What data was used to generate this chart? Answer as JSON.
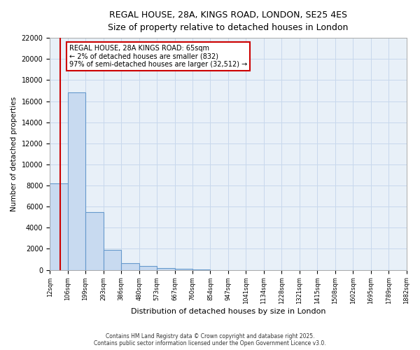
{
  "title_line1": "REGAL HOUSE, 28A, KINGS ROAD, LONDON, SE25 4ES",
  "title_line2": "Size of property relative to detached houses in London",
  "xlabel": "Distribution of detached houses by size in London",
  "ylabel": "Number of detached properties",
  "bin_edges": [
    12,
    106,
    199,
    293,
    386,
    480,
    573,
    667,
    760,
    854,
    947,
    1041,
    1134,
    1228,
    1321,
    1415,
    1508,
    1602,
    1695,
    1789,
    1882
  ],
  "bin_labels": [
    "12sqm",
    "106sqm",
    "199sqm",
    "293sqm",
    "386sqm",
    "480sqm",
    "573sqm",
    "667sqm",
    "760sqm",
    "854sqm",
    "947sqm",
    "1041sqm",
    "1134sqm",
    "1228sqm",
    "1321sqm",
    "1415sqm",
    "1508sqm",
    "1602sqm",
    "1695sqm",
    "1789sqm",
    "1882sqm"
  ],
  "bar_heights": [
    8200,
    16800,
    5500,
    1900,
    650,
    350,
    150,
    100,
    30,
    0,
    0,
    0,
    0,
    0,
    0,
    0,
    0,
    0,
    0,
    0
  ],
  "bar_color": "#c8daf0",
  "bar_edge_color": "#6699cc",
  "grid_color": "#c8d8ec",
  "property_size": 65,
  "annotation_line1": "REGAL HOUSE, 28A KINGS ROAD: 65sqm",
  "annotation_line2": "← 2% of detached houses are smaller (832)",
  "annotation_line3": "97% of semi-detached houses are larger (32,512) →",
  "annotation_box_color": "#ffffff",
  "annotation_box_edge_color": "#cc0000",
  "red_line_color": "#cc0000",
  "ylim": [
    0,
    22000
  ],
  "yticks": [
    0,
    2000,
    4000,
    6000,
    8000,
    10000,
    12000,
    14000,
    16000,
    18000,
    20000,
    22000
  ],
  "fig_bg": "#ffffff",
  "plot_bg": "#e8f0f8",
  "footer_line1": "Contains HM Land Registry data © Crown copyright and database right 2025.",
  "footer_line2": "Contains public sector information licensed under the Open Government Licence v3.0."
}
